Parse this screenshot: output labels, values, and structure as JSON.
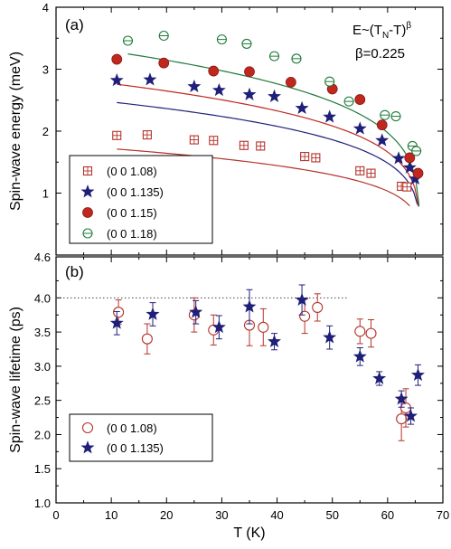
{
  "chart_data": [
    {
      "panel_label": "(a)",
      "type": "scatter",
      "ylabel": "Spin-wave energy (meV)",
      "xlim": [
        0,
        70
      ],
      "ylim": [
        0,
        4
      ],
      "y_ticks": [
        0,
        1,
        2,
        3,
        4
      ],
      "y_tick_labels": [
        "",
        "1",
        "2",
        "3",
        "4"
      ],
      "annotations": {
        "formula_main": "E~(T",
        "formula_sub": "N",
        "formula_mid": "-T)",
        "formula_sup": "β",
        "beta_text": "β=0.225"
      },
      "legend_position": "bottom-left",
      "fit": {
        "TN": 65.8,
        "beta": 0.225,
        "color": "#d04a3e"
      },
      "series": [
        {
          "name": "(0 0 1.08)",
          "marker": "open-square",
          "color": "#b5332b",
          "fit_A": 0.695,
          "fit_range": [
            11,
            64
          ],
          "points": [
            [
              11,
              1.93
            ],
            [
              16.5,
              1.94
            ],
            [
              25,
              1.86
            ],
            [
              28.5,
              1.85
            ],
            [
              34,
              1.77
            ],
            [
              37,
              1.76
            ],
            [
              45,
              1.59
            ],
            [
              47,
              1.57
            ],
            [
              55,
              1.36
            ],
            [
              57,
              1.32
            ],
            [
              62.5,
              1.11
            ],
            [
              63.5,
              1.1
            ]
          ]
        },
        {
          "name": "(0 0 1.135)",
          "marker": "star",
          "color": "#1f1f7a",
          "fit_A": 1.0,
          "fit_range": [
            11,
            65.4
          ],
          "points": [
            [
              11,
              2.82
            ],
            [
              17,
              2.83
            ],
            [
              25,
              2.72
            ],
            [
              29.5,
              2.66
            ],
            [
              35,
              2.59
            ],
            [
              39.5,
              2.56
            ],
            [
              44.5,
              2.37
            ],
            [
              49.5,
              2.23
            ],
            [
              55,
              2.04
            ],
            [
              59,
              1.85
            ],
            [
              62,
              1.56
            ],
            [
              64,
              1.41
            ],
            [
              65,
              1.23
            ]
          ]
        },
        {
          "name": "(0 0 1.15)",
          "marker": "filled-circle",
          "color": "#c0281f",
          "fit_A": 1.12,
          "fit_range": [
            11,
            65.6
          ],
          "points": [
            [
              11,
              3.16
            ],
            [
              19.5,
              3.1
            ],
            [
              28.5,
              2.97
            ],
            [
              35,
              2.96
            ],
            [
              42.5,
              2.79
            ],
            [
              50,
              2.68
            ],
            [
              55,
              2.51
            ],
            [
              59,
              2.1
            ],
            [
              64,
              1.57
            ],
            [
              65.5,
              1.32
            ]
          ]
        },
        {
          "name": "(0 0 1.18)",
          "marker": "theta-circle",
          "color": "#1f7a3a",
          "fit_A": 1.33,
          "fit_range": [
            13,
            65.7
          ],
          "points": [
            [
              13,
              3.46
            ],
            [
              19.5,
              3.54
            ],
            [
              30,
              3.48
            ],
            [
              34.5,
              3.41
            ],
            [
              39.5,
              3.21
            ],
            [
              43.5,
              3.17
            ],
            [
              49.5,
              2.8
            ],
            [
              53,
              2.48
            ],
            [
              59.5,
              2.26
            ],
            [
              61.5,
              2.24
            ],
            [
              64.5,
              1.76
            ],
            [
              65.2,
              1.68
            ]
          ]
        }
      ]
    },
    {
      "panel_label": "(b)",
      "type": "scatter",
      "xlabel": "T (K)",
      "ylabel": "Spin-wave lifetime (ps)",
      "xlim": [
        0,
        70
      ],
      "ylim": [
        1.0,
        4.6
      ],
      "x_ticks": [
        0,
        10,
        20,
        30,
        40,
        50,
        60,
        70
      ],
      "x_tick_labels": [
        "0",
        "10",
        "20",
        "30",
        "40",
        "50",
        "60",
        "70"
      ],
      "y_ticks": [
        1.0,
        1.5,
        2.0,
        2.5,
        3.0,
        3.5,
        4.0,
        4.6
      ],
      "y_tick_labels": [
        "1.0",
        "1.5",
        "2.0",
        "2.5",
        "3.0",
        "3.5",
        "4.0",
        "4.6"
      ],
      "reference_line": {
        "y": 4.0,
        "x_range": [
          0,
          53
        ]
      },
      "legend_position": "bottom-left",
      "series": [
        {
          "name": "(0 0 1.08)",
          "marker": "open-circle",
          "color": "#b5332b",
          "points": [
            [
              11.3,
              3.79,
              0.18
            ],
            [
              16.5,
              3.4,
              0.22
            ],
            [
              25,
              3.75,
              0.25
            ],
            [
              28.5,
              3.53,
              0.22
            ],
            [
              35,
              3.6,
              0.3
            ],
            [
              37.5,
              3.57,
              0.27
            ],
            [
              45,
              3.73,
              0.25
            ],
            [
              47.3,
              3.86,
              0.2
            ],
            [
              55,
              3.51,
              0.18
            ],
            [
              57,
              3.48,
              0.2
            ],
            [
              62.5,
              2.23,
              0.32
            ],
            [
              63.3,
              2.39,
              0.28
            ]
          ]
        },
        {
          "name": "(0 0 1.135)",
          "marker": "star",
          "color": "#1f1f7a",
          "points": [
            [
              11,
              3.63,
              0.17
            ],
            [
              17.5,
              3.76,
              0.17
            ],
            [
              25.3,
              3.79,
              0.17
            ],
            [
              29.5,
              3.57,
              0.17
            ],
            [
              35,
              3.87,
              0.25
            ],
            [
              39.5,
              3.36,
              0.12
            ],
            [
              44.5,
              3.97,
              0.22
            ],
            [
              49.5,
              3.42,
              0.17
            ],
            [
              55,
              3.14,
              0.13
            ],
            [
              58.5,
              2.82,
              0.1
            ],
            [
              62.5,
              2.52,
              0.12
            ],
            [
              64.2,
              2.27,
              0.12
            ],
            [
              65.5,
              2.87,
              0.15
            ]
          ]
        }
      ]
    }
  ]
}
